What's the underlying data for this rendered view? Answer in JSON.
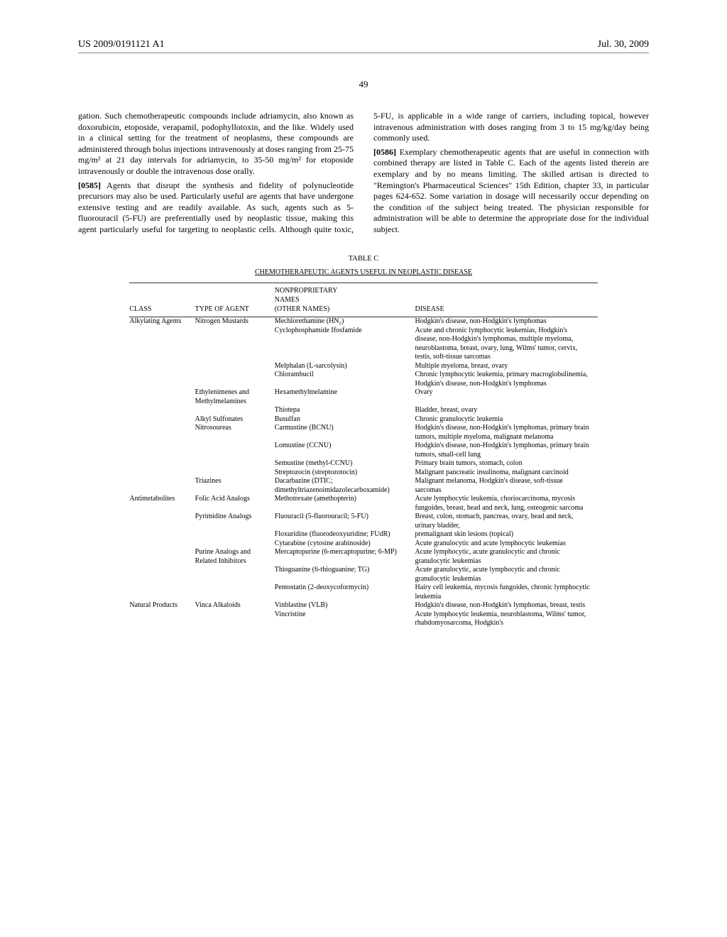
{
  "header": {
    "left": "US 2009/0191121 A1",
    "right": "Jul. 30, 2009"
  },
  "page_number": "49",
  "intro_continuation": "gation. Such chemotherapeutic compounds include adriamycin, also known as doxorubicin, etoposide, verapamil, podophyllotoxin, and the like. Widely used in a clinical setting for the treatment of neoplasms, these compounds are administered through bolus injections intravenously at doses ranging from 25-75 mg/m² at 21 day intervals for adriamycin, to 35-50 mg/m² for etoposide intravenously or double the intravenous dose orally.",
  "para_0585_num": "[0585]",
  "para_0585": "Agents that disrupt the synthesis and fidelity of polynucleotide precursors may also be used. Particularly useful are agents that have undergone extensive testing and are readily available. As such, agents such as 5-fluorouracil (5-FU) are preferentially used by neoplastic tissue, making this agent particularly useful for targeting to neoplastic cells. Although quite toxic, 5-FU, is applicable in a wide range of carriers, including topical, however intravenous administration with doses ranging from 3 to 15 mg/kg/day being commonly used.",
  "para_0586_num": "[0586]",
  "para_0586": "Exemplary chemotherapeutic agents that are useful in connection with combined therapy are listed in Table C. Each of the agents listed therein are exemplary and by no means limiting. The skilled artisan is directed to \"Remington's Pharmaceutical Sciences\" 15th Edition, chapter 33, in particular pages 624-652. Some variation in dosage will necessarily occur depending on the condition of the subject being treated. The physician responsible for administration will be able to determine the appropriate dose for the individual subject.",
  "table": {
    "caption": "TABLE C",
    "title": "CHEMOTHERAPEUTIC AGENTS USEFUL IN NEOPLASTIC DISEASE",
    "columns": [
      "CLASS",
      "TYPE OF AGENT",
      "NONPROPRIETARY NAMES (OTHER NAMES)",
      "DISEASE"
    ],
    "rows": [
      [
        "Alkylating Agents",
        "Nitrogen Mustards",
        "Mechlorethamine (HN₂)",
        "Hodgkin's disease, non-Hodgkin's lymphomas"
      ],
      [
        "",
        "",
        "Cyclophosphamide Ifosfamide",
        "Acute and chronic lymphocytic leukemias, Hodgkin's disease, non-Hodgkin's lymphomas, multiple myeloma, neuroblastoma, breast, ovary, lung, Wilms' tumor, cervix, testis, soft-tissue sarcomas"
      ],
      [
        "",
        "",
        "Melphalan (L-sarcolysin)",
        "Multiple myeloma, breast, ovary"
      ],
      [
        "",
        "",
        "Chlorambucil",
        "Chronic lymphocytic leukemia, primary macroglobulinemia, Hodgkin's disease, non-Hodgkin's lymphomas"
      ],
      [
        "",
        "Ethylenimenes and Methylmelamines",
        "Hexamethylmelamine",
        "Ovary"
      ],
      [
        "",
        "",
        "Thiotepa",
        "Bladder, breast, ovary"
      ],
      [
        "",
        "Alkyl Sulfonates",
        "Busulfan",
        "Chronic granulocytic leukemia"
      ],
      [
        "",
        "Nitrosoureas",
        "Carmustine (BCNU)",
        "Hodgkin's disease, non-Hodgkin's lymphomas, primary brain tumors, multiple myeloma, malignant melanoma"
      ],
      [
        "",
        "",
        "Lomustine (CCNU)",
        "Hodgkin's disease, non-Hodgkin's lymphomas, primary brain tumors, small-cell lung"
      ],
      [
        "",
        "",
        "Semustine (methyl-CCNU)",
        "Primary brain tumors, stomach, colon"
      ],
      [
        "",
        "",
        "Streptozocin (streptozotocin)",
        "Malignant pancreatic insulinoma, malignant carcinoid"
      ],
      [
        "",
        "Triazines",
        "Dacarbazine (DTIC; dimethyltriazenoimidazolecarboxamide)",
        "Malignant melanoma, Hodgkin's disease, soft-tissue sarcomas"
      ],
      [
        "Antimetabolites",
        "Folic Acid Analogs",
        "Methotrexate (amethopterin)",
        "Acute lymphocytic leukemia, choriocarcinoma, mycosis fungoides, breast, head and neck, lung, osteogenic sarcoma"
      ],
      [
        "",
        "Pyrimidine Analogs",
        "Fluouracil (5-fluorouracil; 5-FU)",
        "Breast, colon, stomach, pancreas, ovary, head and neck, urinary bladder,"
      ],
      [
        "",
        "",
        "Floxuridine (fluorodeoxyuridine; FUdR)",
        "premalignant skin lesions (topical)"
      ],
      [
        "",
        "",
        "Cytarabine (cytosine arabinoside)",
        "Acute granulocytic and acute lymphocytic leukemias"
      ],
      [
        "",
        "Purine Analogs and Related Inhibitors",
        "Mercaptopurine (6-mercaptopurine; 6-MP)",
        "Acute lymphocytic, acute granulocytic and chronic granulocytic leukemias"
      ],
      [
        "",
        "",
        "Thioguanine (6-thioguanine; TG)",
        "Acute granulocytic, acute lymphocytic and chronic granulocytic leukemias"
      ],
      [
        "",
        "",
        "Pentostatin (2-deoxycoformycin)",
        "Hairy cell leukemia, mycosis fungoides, chronic lymphocytic leukemia"
      ],
      [
        "Natural Products",
        "Vinca Alkaloids",
        "Vinblastine (VLB)",
        "Hodgkin's disease, non-Hodgkin's lymphomas, breast, testis"
      ],
      [
        "",
        "",
        "Vincristine",
        "Acute lymphocytic leukemia, neuroblastoma, Wilms' tumor, rhabdomyosarcoma, Hodgkin's"
      ]
    ]
  }
}
